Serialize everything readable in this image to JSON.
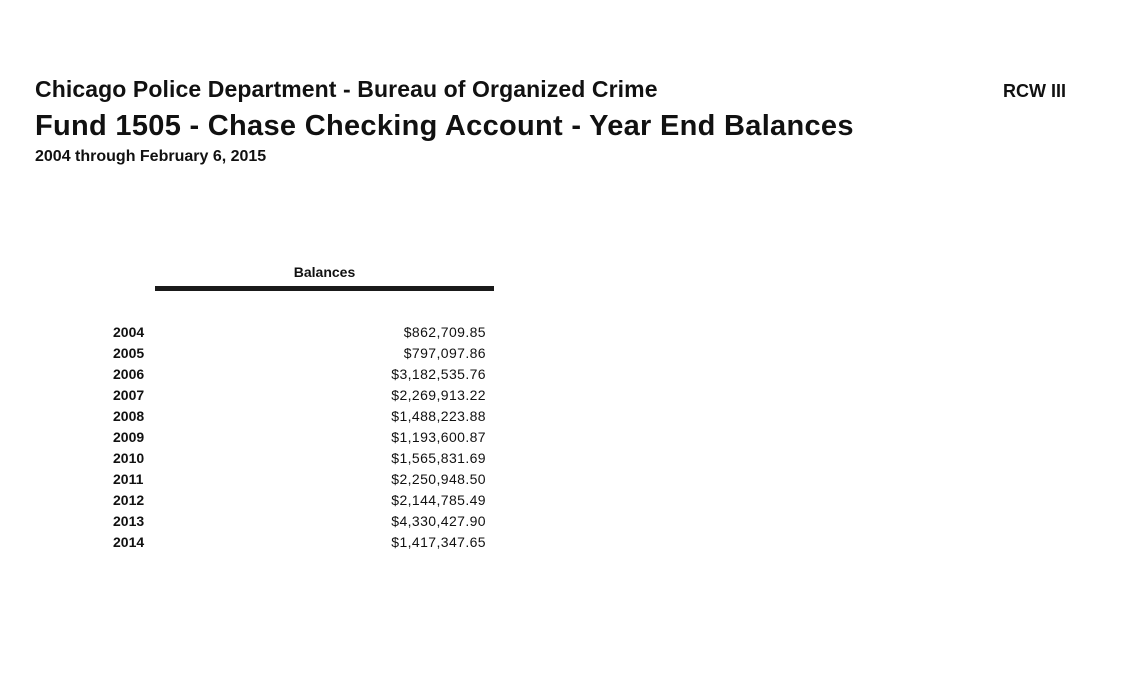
{
  "header": {
    "org_title": "Chicago Police Department - Bureau of Organized Crime",
    "report_code": "RCW III",
    "report_title": "Fund 1505 - Chase Checking Account  - Year End Balances",
    "date_range": "2004 through February 6, 2015"
  },
  "table": {
    "column_header": "Balances",
    "rows": [
      {
        "year": "2004",
        "balance": "$862,709.85"
      },
      {
        "year": "2005",
        "balance": "$797,097.86"
      },
      {
        "year": "2006",
        "balance": "$3,182,535.76"
      },
      {
        "year": "2007",
        "balance": "$2,269,913.22"
      },
      {
        "year": "2008",
        "balance": "$1,488,223.88"
      },
      {
        "year": "2009",
        "balance": "$1,193,600.87"
      },
      {
        "year": "2010",
        "balance": "$1,565,831.69"
      },
      {
        "year": "2011",
        "balance": "$2,250,948.50"
      },
      {
        "year": "2012",
        "balance": "$2,144,785.49"
      },
      {
        "year": "2013",
        "balance": "$4,330,427.90"
      },
      {
        "year": "2014",
        "balance": "$1,417,347.65"
      }
    ]
  }
}
